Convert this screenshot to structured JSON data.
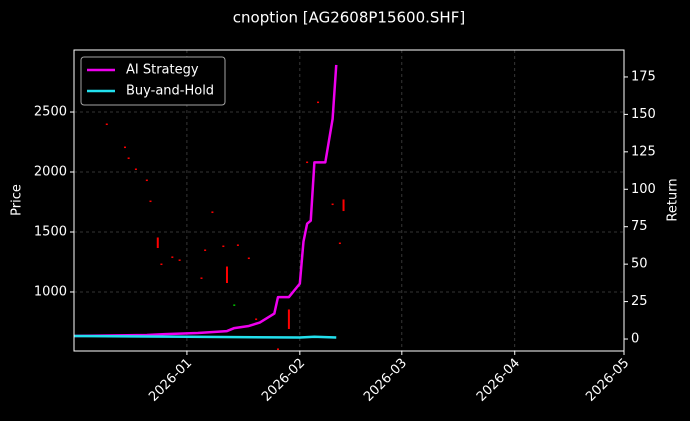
{
  "chart_data": {
    "type": "candlestick-return",
    "title": "cnoption [AG2608P15600.SHF]",
    "y_label": "Price",
    "y2_label": "Return",
    "xlim": [
      "2025-12-01",
      "2026-05-01"
    ],
    "xticks": [
      "2026-01",
      "2026-02",
      "2026-03",
      "2026-04",
      "2026-05"
    ],
    "ylim": [
      508,
      3017
    ],
    "yticks": [
      1000,
      1500,
      2000,
      2500
    ],
    "y2lim": [
      -8,
      193
    ],
    "y2ticks": [
      0,
      25,
      50,
      75,
      100,
      125,
      150,
      175
    ],
    "grid": true,
    "legend": "upper left",
    "candles": {
      "x": [
        "2025-12-10",
        "2025-12-15",
        "2025-12-16",
        "2025-12-18",
        "2025-12-21",
        "2025-12-22",
        "2025-12-24",
        "2025-12-25",
        "2025-12-28",
        "2025-12-30",
        "2026-01-05",
        "2026-01-06",
        "2026-01-08",
        "2026-01-11",
        "2026-01-12",
        "2026-01-14",
        "2026-01-15",
        "2026-01-18",
        "2026-01-20",
        "2026-01-26",
        "2026-01-29",
        "2026-02-03",
        "2026-02-06",
        "2026-02-10",
        "2026-02-12",
        "2026-02-13"
      ],
      "low": [
        2400,
        2208,
        2117,
        2025,
        1933,
        1758,
        1375,
        1233,
        1292,
        1267,
        1117,
        1350,
        1667,
        1383,
        1083,
        892,
        1392,
        1283,
        775,
        525,
        700,
        2083,
        2583,
        1733,
        1408,
        1683
      ],
      "high": [
        2400,
        2208,
        2117,
        2025,
        1933,
        1758,
        1450,
        1233,
        1292,
        1267,
        1117,
        1350,
        1667,
        1383,
        1208,
        892,
        1392,
        1283,
        775,
        525,
        850,
        2083,
        2583,
        1733,
        1408,
        1767
      ],
      "colors": [
        "#ff0000",
        "#ff0000",
        "#ff0000",
        "#ff0000",
        "#ff0000",
        "#ff0000",
        "#ff0000",
        "#ff0000",
        "#ff0000",
        "#ff0000",
        "#ff0000",
        "#ff0000",
        "#ff0000",
        "#ff0000",
        "#ff0000",
        "#00c000",
        "#ff0000",
        "#ff0000",
        "#ff0000",
        "#ff0000",
        "#ff0000",
        "#ff0000",
        "#ff0000",
        "#ff0000",
        "#ff0000",
        "#ff0000"
      ]
    },
    "series": [
      {
        "name": "AI Strategy",
        "color": "#ee00ee",
        "axis": "y2",
        "x": [
          "2025-12-01",
          "2025-12-21",
          "2025-12-26",
          "2026-01-04",
          "2026-01-12",
          "2026-01-14",
          "2026-01-18",
          "2026-01-21",
          "2026-01-25",
          "2026-01-26",
          "2026-01-29",
          "2026-02-01",
          "2026-02-02",
          "2026-02-03",
          "2026-02-04",
          "2026-02-05",
          "2026-02-08",
          "2026-02-10",
          "2026-02-11"
        ],
        "values": [
          2,
          2.7,
          3.3,
          4,
          5.3,
          7.3,
          8.7,
          11,
          17,
          28,
          28,
          37,
          65,
          77,
          79,
          118,
          118,
          147,
          183
        ]
      },
      {
        "name": "Buy-and-Hold",
        "color": "#22e0ee",
        "axis": "y2",
        "x": [
          "2025-12-01",
          "2026-01-01",
          "2026-02-01",
          "2026-02-05",
          "2026-02-11"
        ],
        "values": [
          2,
          1.5,
          1,
          1.5,
          1
        ]
      }
    ]
  }
}
